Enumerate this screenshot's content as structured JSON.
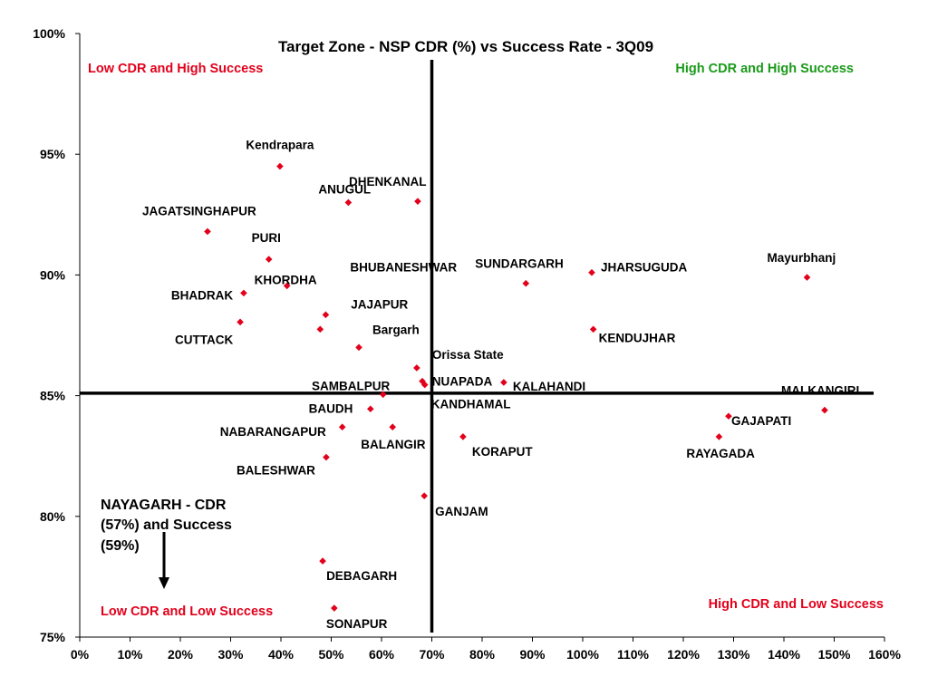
{
  "colors": {
    "point": "#e3001b",
    "zone_red": "#e3001b",
    "zone_green": "#1a9a1a",
    "axis": "#000000"
  },
  "chart_data": {
    "type": "scatter",
    "title": "Target Zone - NSP CDR (%) vs Success Rate - 3Q09",
    "xlabel": "",
    "ylabel": "",
    "xlim": [
      0,
      160
    ],
    "ylim": [
      75,
      100
    ],
    "x_ticks": [
      "0%",
      "10%",
      "20%",
      "30%",
      "40%",
      "50%",
      "60%",
      "70%",
      "80%",
      "90%",
      "100%",
      "110%",
      "120%",
      "130%",
      "140%",
      "150%",
      "160%"
    ],
    "y_ticks": [
      "75%",
      "80%",
      "85%",
      "90%",
      "95%",
      "100%"
    ],
    "grid": false,
    "reference_lines": {
      "x": 70,
      "y": 85.1
    },
    "zones": [
      {
        "text": "Low CDR and High Success",
        "color": "red",
        "position": "top-left"
      },
      {
        "text": "High CDR and High Success",
        "color": "green",
        "position": "top-right"
      },
      {
        "text": "Low CDR and Low Success",
        "color": "red",
        "position": "bottom-left"
      },
      {
        "text": "High CDR and Low Success",
        "color": "red",
        "position": "bottom-right"
      }
    ],
    "annotation": {
      "lines": [
        "NAYAGARH - CDR",
        "(57%) and Success",
        "(59%)"
      ],
      "arrow": "down"
    },
    "points": [
      {
        "label": "Kendrapara",
        "x": 39.8,
        "y": 94.5
      },
      {
        "label": "ANUGUL",
        "x": 53.4,
        "y": 93.0
      },
      {
        "label": "DHENKANAL",
        "x": 67.2,
        "y": 93.05
      },
      {
        "label": "JAGATSINGHAPUR",
        "x": 25.4,
        "y": 91.8
      },
      {
        "label": "PURI",
        "x": 37.6,
        "y": 90.65
      },
      {
        "label": "KHORDHA",
        "x": 41.2,
        "y": 89.55
      },
      {
        "label": "BHADRAK",
        "x": 32.6,
        "y": 89.25
      },
      {
        "label": "BHUBANESHWAR",
        "x": 48.9,
        "y": 88.35
      },
      {
        "label": "JAJAPUR",
        "x": 47.8,
        "y": 87.75
      },
      {
        "label": "CUTTACK",
        "x": 31.9,
        "y": 88.05
      },
      {
        "label": "Bargarh",
        "x": 55.5,
        "y": 87.0
      },
      {
        "label": "Orissa State",
        "x": 67.0,
        "y": 86.15
      },
      {
        "label": "SAMBALPUR",
        "x": 68.1,
        "y": 85.6
      },
      {
        "label": "NUAPADA",
        "x": 68.6,
        "y": 85.45
      },
      {
        "label": "KALAHANDI",
        "x": 84.3,
        "y": 85.55
      },
      {
        "label": "BAUDH",
        "x": 60.3,
        "y": 85.05
      },
      {
        "label": "KANDHAMAL",
        "x": 57.8,
        "y": 84.45
      },
      {
        "label": "SUNDARGARH",
        "x": 88.7,
        "y": 89.65
      },
      {
        "label": "JHARSUGUDA",
        "x": 101.8,
        "y": 90.1
      },
      {
        "label": "KENDUJHAR",
        "x": 102.1,
        "y": 87.75
      },
      {
        "label": "Mayurbhanj",
        "x": 144.6,
        "y": 89.9
      },
      {
        "label": "MALKANGIRI",
        "x": 148.1,
        "y": 84.4
      },
      {
        "label": "GAJAPATI",
        "x": 129.0,
        "y": 84.15
      },
      {
        "label": "RAYAGADA",
        "x": 127.1,
        "y": 83.3
      },
      {
        "label": "NABARANGAPUR",
        "x": 52.2,
        "y": 83.7
      },
      {
        "label": "BALANGIR",
        "x": 62.2,
        "y": 83.7
      },
      {
        "label": "KORAPUT",
        "x": 76.2,
        "y": 83.3
      },
      {
        "label": "BALESHWAR",
        "x": 49.0,
        "y": 82.45
      },
      {
        "label": "GANJAM",
        "x": 68.5,
        "y": 80.85
      },
      {
        "label": "DEBAGARH",
        "x": 48.3,
        "y": 78.15
      },
      {
        "label": "SONAPUR",
        "x": 50.6,
        "y": 76.2
      }
    ]
  }
}
